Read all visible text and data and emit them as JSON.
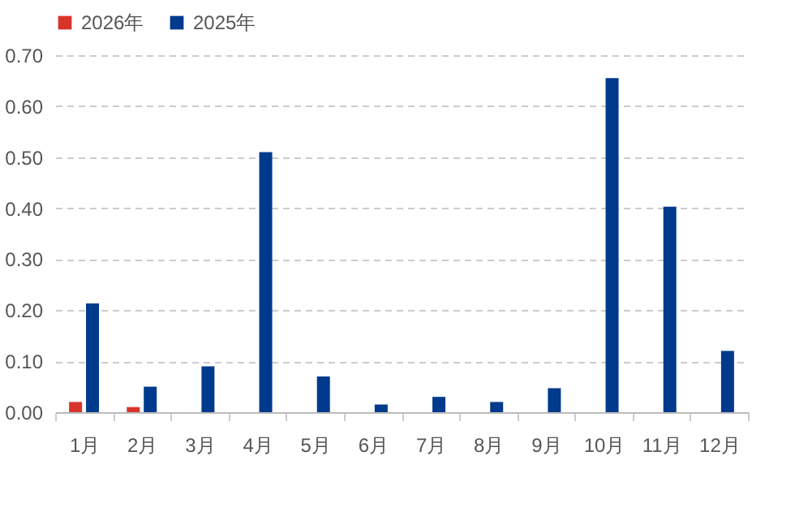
{
  "chart_data": {
    "type": "bar",
    "categories": [
      "1月",
      "2月",
      "3月",
      "4月",
      "5月",
      "6月",
      "7月",
      "8月",
      "9月",
      "10月",
      "11月",
      "12月"
    ],
    "series": [
      {
        "name": "2026年",
        "color": "#d9342b",
        "values": [
          0.02,
          0.01,
          null,
          null,
          null,
          null,
          null,
          null,
          null,
          null,
          null,
          null
        ]
      },
      {
        "name": "2025年",
        "color": "#003a8c",
        "values": [
          0.213,
          0.05,
          0.09,
          0.51,
          0.07,
          0.015,
          0.03,
          0.02,
          0.047,
          0.655,
          0.403,
          0.12
        ]
      }
    ],
    "ylim": [
      0,
      0.7
    ],
    "yticks": [
      {
        "value": 0,
        "label": "0.00"
      },
      {
        "value": 0.1,
        "label": "0.10"
      },
      {
        "value": 0.2,
        "label": "0.20"
      },
      {
        "value": 0.3,
        "label": "0.30"
      },
      {
        "value": 0.4,
        "label": "0.40"
      },
      {
        "value": 0.5,
        "label": "0.50"
      },
      {
        "value": 0.6,
        "label": "0.60"
      },
      {
        "value": 0.7,
        "label": "0.70"
      }
    ],
    "grid": "y",
    "legend": "top"
  }
}
